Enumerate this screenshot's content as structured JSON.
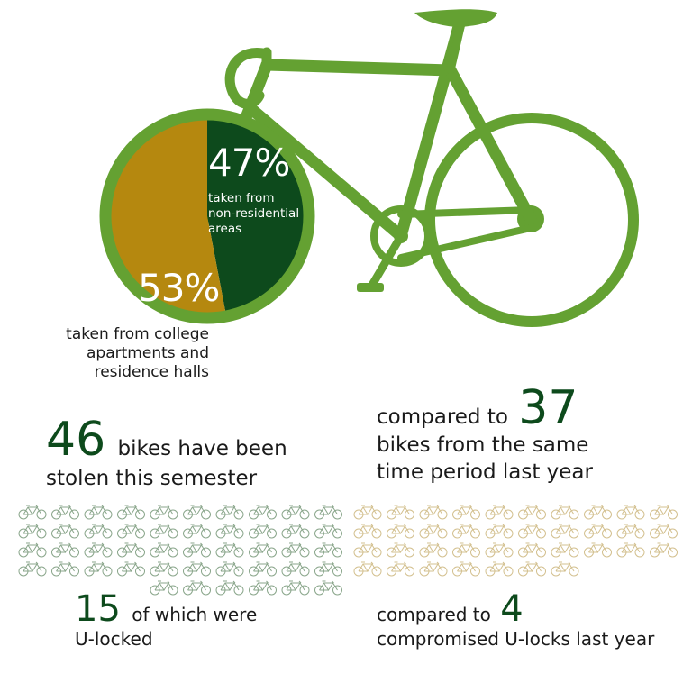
{
  "colors": {
    "bike_green": "#64a132",
    "dark_green": "#0d4a1c",
    "gold": "#b5880f",
    "icon_green": "#8aa68b",
    "icon_gold": "#d3c08f"
  },
  "chart_data": [
    {
      "type": "pie",
      "slices": [
        {
          "label": "taken from non-residential areas",
          "value": 47,
          "display": "47%",
          "color": "#0d4a1c"
        },
        {
          "label": "taken from college apartments and residence halls",
          "value": 53,
          "display": "53%",
          "color": "#b5880f"
        }
      ]
    },
    {
      "type": "bar",
      "categories": [
        "this semester",
        "same time period last year"
      ],
      "values": [
        46,
        37
      ],
      "rendering": "pictogram (one bike icon per stolen bike)"
    },
    {
      "type": "bar",
      "categories": [
        "this semester",
        "last year"
      ],
      "values": [
        15,
        4
      ],
      "rendering": "text only"
    }
  ],
  "pie": {
    "pct_nonres": "47%",
    "nonres_lines": [
      "taken from",
      "non-residential",
      "areas"
    ],
    "pct_res": "53%",
    "res_lines": [
      "taken from college",
      "apartments and",
      "residence halls"
    ]
  },
  "stats": {
    "stolen_num": "46",
    "stolen_text1": "bikes have been",
    "stolen_text2": "stolen this semester",
    "compare_prefix": "compared to",
    "last_year_num": "37",
    "last_year_text1": "bikes from the same",
    "last_year_text2": "time period last year",
    "ulocked_num": "15",
    "ulocked_text1": "of which were",
    "ulocked_text2": "U-locked",
    "ulock_compare_prefix": "compared to",
    "ulock_last_num": "4",
    "ulock_last_text": "compromised U-locks last year"
  },
  "icons": {
    "this_semester_count": 46,
    "last_year_count": 37
  }
}
